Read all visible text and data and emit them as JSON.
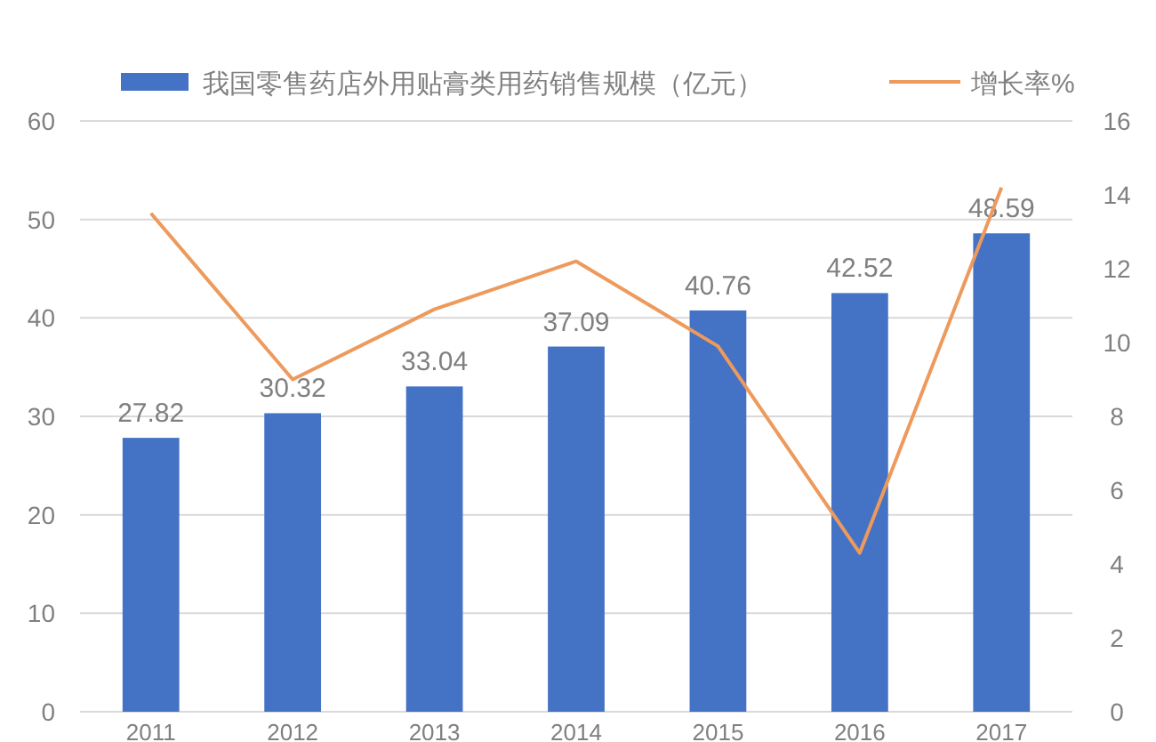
{
  "chart_data": {
    "type": "bar",
    "categories": [
      "2011",
      "2012",
      "2013",
      "2014",
      "2015",
      "2016",
      "2017"
    ],
    "series": [
      {
        "name": "我国零售药店外用贴膏类用药销售规模（亿元）",
        "color": "#4472c4",
        "values": [
          27.82,
          30.32,
          33.04,
          37.09,
          40.76,
          42.52,
          48.59
        ],
        "data_labels": true
      },
      {
        "name": "增长率%",
        "type": "line",
        "axis": "y2",
        "color": "#ed9a5c",
        "values": [
          13.5,
          9.0,
          10.9,
          12.2,
          9.9,
          4.3,
          14.2
        ]
      }
    ],
    "ylim": [
      0,
      60
    ],
    "yticks": [
      0,
      10,
      20,
      30,
      40,
      50,
      60
    ],
    "y2lim": [
      0,
      16
    ],
    "y2ticks": [
      0,
      2,
      4,
      6,
      8,
      10,
      12,
      14,
      16
    ],
    "grid": "y",
    "legend": "top",
    "marker": "none"
  }
}
